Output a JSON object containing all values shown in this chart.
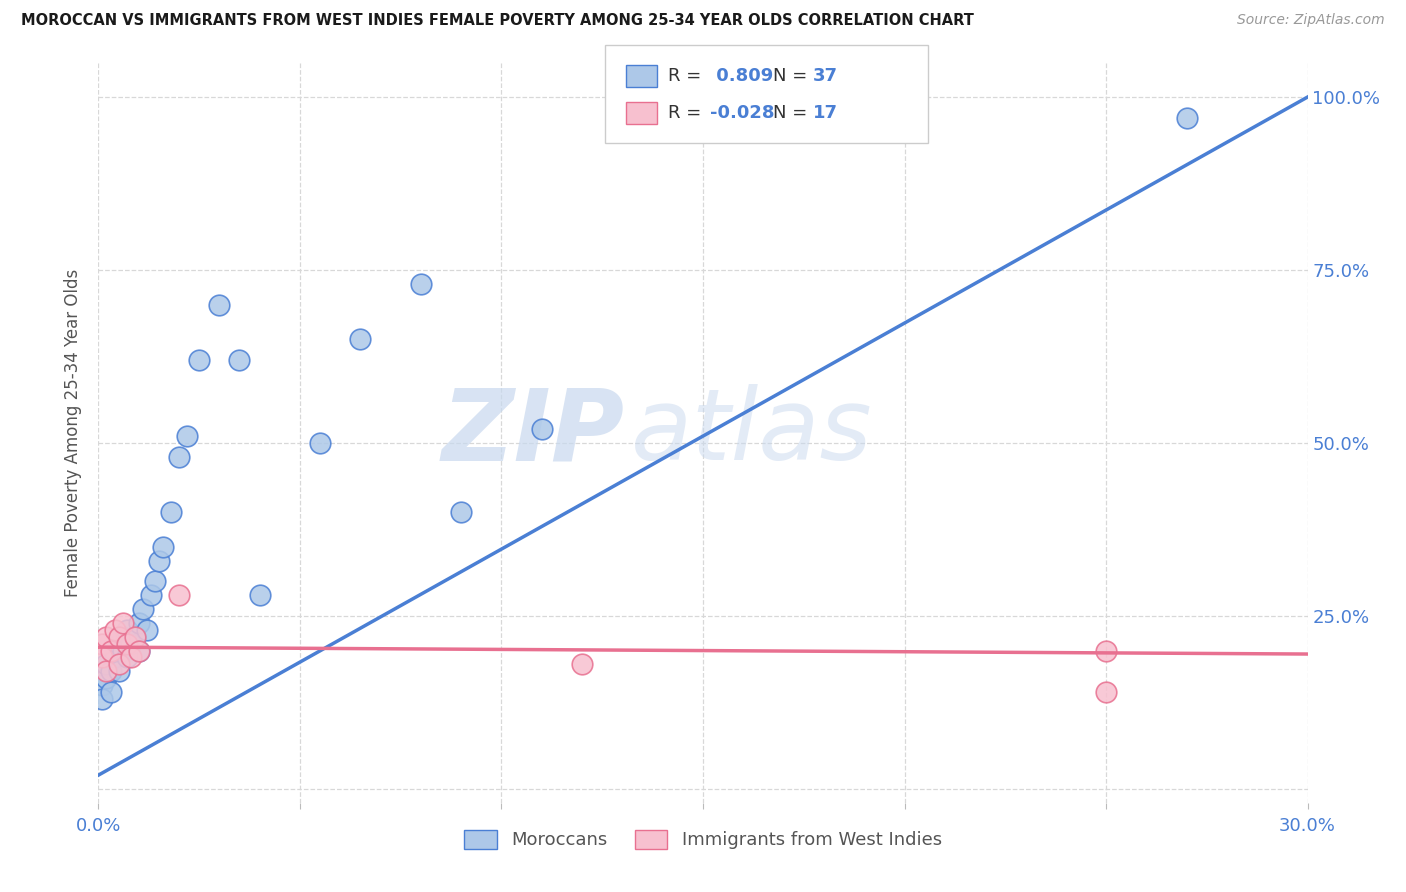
{
  "title": "MOROCCAN VS IMMIGRANTS FROM WEST INDIES FEMALE POVERTY AMONG 25-34 YEAR OLDS CORRELATION CHART",
  "source": "Source: ZipAtlas.com",
  "ylabel": "Female Poverty Among 25-34 Year Olds",
  "xlim": [
    0.0,
    0.3
  ],
  "ylim": [
    -0.02,
    1.05
  ],
  "moroccan_R": 0.809,
  "moroccan_N": 37,
  "westindies_R": -0.028,
  "westindies_N": 17,
  "moroccan_color": "#adc8e8",
  "moroccan_line_color": "#4a7fd4",
  "westindies_color": "#f7c0cf",
  "westindies_line_color": "#e87090",
  "watermark": "ZIP",
  "watermark2": "atlas",
  "background_color": "#ffffff",
  "grid_color": "#d8d8d8",
  "moroccan_scatter_x": [
    0.001,
    0.001,
    0.002,
    0.002,
    0.003,
    0.003,
    0.004,
    0.004,
    0.005,
    0.005,
    0.006,
    0.006,
    0.007,
    0.007,
    0.008,
    0.009,
    0.01,
    0.01,
    0.011,
    0.012,
    0.013,
    0.014,
    0.015,
    0.016,
    0.018,
    0.02,
    0.022,
    0.025,
    0.03,
    0.035,
    0.04,
    0.055,
    0.065,
    0.08,
    0.09,
    0.11,
    0.27
  ],
  "moroccan_scatter_y": [
    0.15,
    0.13,
    0.16,
    0.18,
    0.17,
    0.14,
    0.2,
    0.19,
    0.21,
    0.17,
    0.22,
    0.2,
    0.19,
    0.23,
    0.21,
    0.22,
    0.24,
    0.2,
    0.26,
    0.23,
    0.28,
    0.3,
    0.33,
    0.35,
    0.4,
    0.48,
    0.51,
    0.62,
    0.7,
    0.62,
    0.28,
    0.5,
    0.65,
    0.73,
    0.4,
    0.52,
    0.97
  ],
  "westindies_scatter_x": [
    0.001,
    0.001,
    0.002,
    0.002,
    0.003,
    0.004,
    0.005,
    0.005,
    0.006,
    0.007,
    0.008,
    0.009,
    0.01,
    0.02,
    0.12,
    0.25,
    0.25
  ],
  "westindies_scatter_y": [
    0.21,
    0.19,
    0.22,
    0.17,
    0.2,
    0.23,
    0.22,
    0.18,
    0.24,
    0.21,
    0.19,
    0.22,
    0.2,
    0.28,
    0.18,
    0.2,
    0.14
  ],
  "mor_line_x0": 0.0,
  "mor_line_y0": 0.02,
  "mor_line_x1": 0.3,
  "mor_line_y1": 1.0,
  "wi_line_x0": 0.0,
  "wi_line_y0": 0.205,
  "wi_line_x1": 0.3,
  "wi_line_y1": 0.195
}
